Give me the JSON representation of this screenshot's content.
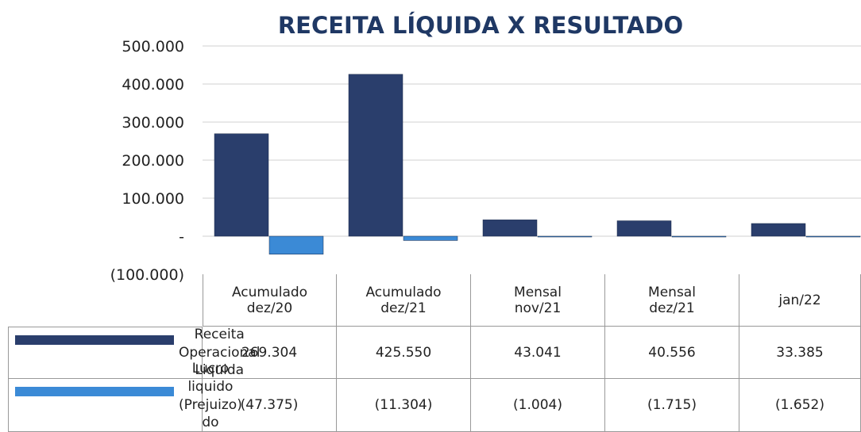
{
  "chart_data": {
    "type": "bar",
    "title": "RECEITA LÍQUIDA X RESULTADO",
    "categories": [
      "Acumulado dez/20",
      "Acumulado dez/21",
      "Mensal nov/21",
      "Mensal dez/21",
      "jan/22"
    ],
    "series": [
      {
        "name": "Receita Operacional Liquida",
        "color": "#2a3e6c",
        "values": [
          269304,
          425550,
          43041,
          40556,
          33385
        ],
        "value_labels": [
          "269.304",
          "425.550",
          "43.041",
          "40.556",
          "33.385"
        ]
      },
      {
        "name": "Lucro liquido (Prejuizo) do Período",
        "color": "#3b8ad6",
        "values": [
          -47375,
          -11304,
          -1004,
          -1715,
          -1652
        ],
        "value_labels": [
          "(47.375)",
          "(11.304)",
          "(1.004)",
          "(1.715)",
          "(1.652)"
        ]
      }
    ],
    "ylim": [
      -100000,
      500000
    ],
    "yticks": [
      {
        "value": -100000,
        "label": "(100.000)"
      },
      {
        "value": 0,
        "label": "-"
      },
      {
        "value": 100000,
        "label": "100.000"
      },
      {
        "value": 200000,
        "label": "200.000"
      },
      {
        "value": 300000,
        "label": "300.000"
      },
      {
        "value": 400000,
        "label": "400.000"
      },
      {
        "value": 500000,
        "label": "500.000"
      }
    ],
    "grid": true
  }
}
